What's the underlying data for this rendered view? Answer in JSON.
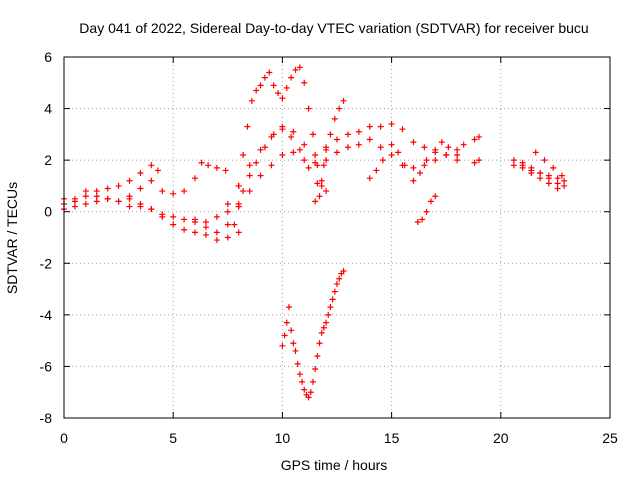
{
  "chart_data": {
    "type": "scatter",
    "title": "Day 041 of 2022, Sidereal Day-to-day VTEC variation (SDTVAR) for receiver bucu",
    "xlabel": "GPS time / hours",
    "ylabel": "SDTVAR / TECUs",
    "xlim": [
      0,
      25
    ],
    "ylim": [
      -8,
      6
    ],
    "x_ticks": [
      0,
      5,
      10,
      15,
      20,
      25
    ],
    "y_ticks": [
      -8,
      -6,
      -4,
      -2,
      0,
      2,
      4,
      6
    ],
    "grid": true,
    "marker": "+",
    "color": "#ff0000",
    "series": [
      {
        "x": [
          0.0,
          0.5,
          1.0,
          1.5,
          2.0,
          2.5,
          3.0,
          3.5,
          4.0,
          4.3
        ],
        "y": [
          0.3,
          0.5,
          0.8,
          0.8,
          0.9,
          1.0,
          1.2,
          1.5,
          1.8,
          1.6
        ]
      },
      {
        "x": [
          0.0,
          0.5,
          1.0,
          1.5,
          2.0,
          2.5,
          3.0,
          3.5,
          4.0,
          4.5,
          5.0,
          5.5,
          6.0,
          6.3,
          6.6,
          7.0,
          7.4
        ],
        "y": [
          0.5,
          0.4,
          0.6,
          0.6,
          0.5,
          0.4,
          0.6,
          0.9,
          1.2,
          0.8,
          0.7,
          0.8,
          1.3,
          1.9,
          1.8,
          1.7,
          1.6
        ]
      },
      {
        "x": [
          0.0,
          0.5,
          1.0,
          1.5,
          2.0,
          2.5,
          3.0,
          3.5,
          4.0,
          4.5,
          5.0,
          5.5,
          6.0,
          6.5,
          7.0,
          7.5,
          8.0
        ],
        "y": [
          0.1,
          0.2,
          0.3,
          0.4,
          0.5,
          0.4,
          0.2,
          0.2,
          0.1,
          -0.2,
          -0.5,
          -0.7,
          -0.8,
          -0.9,
          -1.1,
          -1.0,
          -0.8
        ]
      },
      {
        "x": [
          3.0,
          3.5,
          4.0,
          4.5,
          5.0,
          5.5,
          6.0,
          6.5,
          7.0,
          7.5,
          8.0
        ],
        "y": [
          0.5,
          0.3,
          0.1,
          -0.1,
          -0.2,
          -0.3,
          -0.4,
          -0.6,
          -0.8,
          -0.5,
          0.2
        ]
      },
      {
        "x": [
          6.0,
          6.5,
          7.0,
          7.5,
          8.0,
          8.5,
          9.0,
          9.5,
          10.0,
          10.5,
          11.0,
          11.5,
          12.0,
          12.5,
          13.0,
          13.5,
          14.0,
          14.5,
          15.0,
          15.5,
          16.0,
          16.5,
          17.0,
          17.5,
          18.0,
          18.3
        ],
        "y": [
          -0.3,
          -0.4,
          -0.2,
          0.0,
          0.3,
          0.8,
          1.4,
          1.8,
          2.2,
          2.3,
          2.0,
          1.9,
          2.0,
          2.3,
          2.5,
          2.6,
          2.8,
          2.5,
          2.2,
          1.8,
          1.7,
          1.8,
          2.0,
          2.2,
          2.4,
          2.6
        ]
      },
      {
        "x": [
          7.5,
          8.0,
          8.5,
          9.0,
          9.5,
          10.0,
          10.5,
          11.0,
          11.5,
          12.0,
          12.5,
          13.0,
          13.5,
          14.0,
          14.5,
          15.0,
          15.5,
          16.0,
          16.5,
          17.0,
          17.5,
          18.0
        ],
        "y": [
          0.3,
          1.0,
          1.8,
          2.4,
          2.9,
          3.2,
          3.1,
          2.6,
          2.2,
          2.4,
          2.8,
          3.0,
          3.1,
          3.3,
          3.3,
          3.4,
          3.2,
          2.7,
          2.5,
          2.3,
          2.2,
          2.0
        ]
      },
      {
        "x": [
          8.0,
          8.2,
          8.4,
          8.6,
          8.8,
          9.0,
          9.2,
          9.4,
          9.6,
          9.8,
          10.0,
          10.2,
          10.4,
          10.6,
          10.8,
          11.0,
          11.2,
          11.4,
          11.6,
          11.8,
          12.0
        ],
        "y": [
          1.0,
          2.2,
          3.3,
          4.3,
          4.7,
          4.9,
          5.2,
          5.4,
          4.9,
          4.6,
          4.4,
          4.8,
          5.2,
          5.5,
          5.6,
          5.0,
          4.0,
          3.0,
          1.8,
          1.0,
          0.8
        ]
      },
      {
        "x": [
          7.8,
          8.0,
          8.2,
          8.5,
          8.8,
          9.2,
          9.6,
          10.0,
          10.4,
          10.8,
          11.2,
          11.6
        ],
        "y": [
          -0.5,
          0.2,
          0.8,
          1.4,
          1.9,
          2.5,
          3.0,
          3.3,
          2.9,
          2.4,
          1.7,
          1.1
        ]
      },
      {
        "x": [
          11.5,
          11.7,
          11.8,
          11.9,
          12.0,
          12.2,
          12.4,
          12.6,
          12.8
        ],
        "y": [
          0.4,
          0.6,
          1.2,
          1.8,
          2.5,
          3.0,
          3.6,
          4.0,
          4.3
        ]
      },
      {
        "x": [
          10.0,
          10.1,
          10.2,
          10.3,
          10.4,
          10.5,
          10.6,
          10.7,
          10.8,
          10.9,
          11.0,
          11.1,
          11.2,
          11.3,
          11.4,
          11.5,
          11.6,
          11.7,
          11.8,
          11.9,
          12.0,
          12.1,
          12.2,
          12.3,
          12.4,
          12.5,
          12.6,
          12.7,
          12.8
        ],
        "y": [
          -5.2,
          -4.8,
          -4.3,
          -3.7,
          -4.6,
          -5.1,
          -5.4,
          -5.9,
          -6.3,
          -6.6,
          -6.9,
          -7.1,
          -7.2,
          -7.0,
          -6.6,
          -6.1,
          -5.6,
          -5.1,
          -4.7,
          -4.5,
          -4.3,
          -4.0,
          -3.7,
          -3.4,
          -3.1,
          -2.8,
          -2.6,
          -2.4,
          -2.3
        ]
      },
      {
        "x": [
          14.0,
          14.3,
          14.6,
          15.0,
          15.3,
          15.6,
          16.0,
          16.3,
          16.6,
          17.0,
          17.3,
          17.6,
          18.0
        ],
        "y": [
          1.3,
          1.6,
          2.0,
          2.6,
          2.3,
          1.8,
          1.2,
          1.5,
          2.0,
          2.4,
          2.7,
          2.5,
          2.2
        ]
      },
      {
        "x": [
          16.2,
          16.4,
          16.6,
          16.8,
          17.0
        ],
        "y": [
          -0.4,
          -0.3,
          0.0,
          0.4,
          0.6
        ]
      },
      {
        "x": [
          18.8,
          19.0
        ],
        "y": [
          2.8,
          2.9
        ]
      },
      {
        "x": [
          18.8,
          19.0
        ],
        "y": [
          1.9,
          2.0
        ]
      },
      {
        "x": [
          20.6,
          21.0,
          21.4,
          21.8,
          22.2,
          22.6,
          22.9
        ],
        "y": [
          2.0,
          1.9,
          1.7,
          1.5,
          1.3,
          1.1,
          1.0
        ]
      },
      {
        "x": [
          20.6,
          21.0,
          21.4,
          21.8,
          22.2,
          22.6,
          22.9
        ],
        "y": [
          1.8,
          1.8,
          1.6,
          1.5,
          1.4,
          1.3,
          1.2
        ]
      },
      {
        "x": [
          21.6,
          22.0,
          22.4,
          22.8
        ],
        "y": [
          2.3,
          2.0,
          1.7,
          1.4
        ]
      },
      {
        "x": [
          21.0,
          21.4,
          21.8,
          22.2,
          22.6
        ],
        "y": [
          1.7,
          1.5,
          1.3,
          1.1,
          0.9
        ]
      }
    ]
  }
}
